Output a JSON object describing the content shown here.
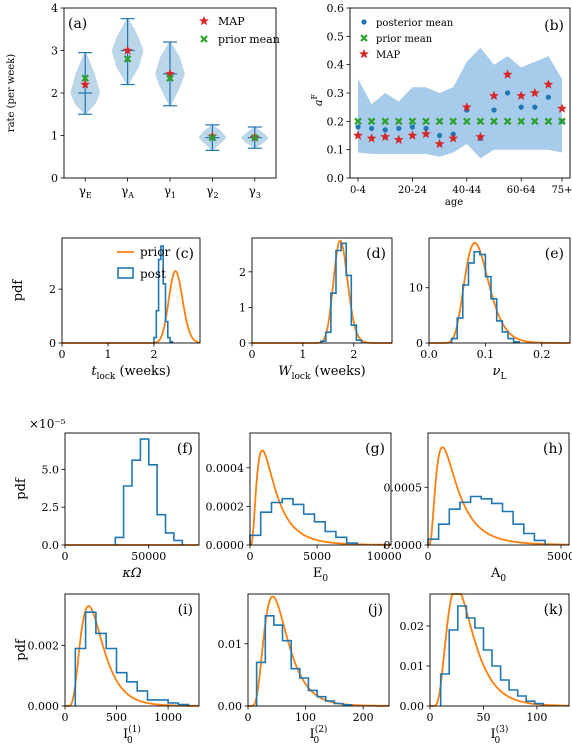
{
  "figure": {
    "width": 572,
    "height": 749
  },
  "chart_data": [
    {
      "id": "a",
      "type": "violin",
      "panel_label": "(a)",
      "ylabel": "rate (per week)",
      "xlabel": "",
      "categories": [
        "γE",
        "γA",
        "γ1",
        "γ2",
        "γ3"
      ],
      "category_labels": [
        {
          "main": "γ",
          "sub": "E"
        },
        {
          "main": "γ",
          "sub": "A"
        },
        {
          "main": "γ",
          "sub": "1"
        },
        {
          "main": "γ",
          "sub": "2"
        },
        {
          "main": "γ",
          "sub": "3"
        }
      ],
      "ylim": [
        0,
        4
      ],
      "yticks": [
        "0",
        "1",
        "2",
        "3",
        "4"
      ],
      "violins": [
        {
          "min": 1.5,
          "q_low": 1.75,
          "median": 2.0,
          "q_high": 2.45,
          "max": 2.95,
          "width": 0.32
        },
        {
          "min": 2.2,
          "q_low": 2.6,
          "median": 3.0,
          "q_high": 3.35,
          "max": 3.75,
          "width": 0.34
        },
        {
          "min": 1.7,
          "q_low": 2.15,
          "median": 2.45,
          "q_high": 2.85,
          "max": 3.2,
          "width": 0.32
        },
        {
          "min": 0.65,
          "q_low": 0.85,
          "median": 0.95,
          "q_high": 1.1,
          "max": 1.25,
          "width": 0.3
        },
        {
          "min": 0.7,
          "q_low": 0.85,
          "median": 0.95,
          "q_high": 1.05,
          "max": 1.2,
          "width": 0.3
        }
      ],
      "series": [
        {
          "name": "MAP",
          "marker": "star",
          "color": "#d62728",
          "values": [
            2.2,
            3.0,
            2.45,
            0.98,
            0.95
          ]
        },
        {
          "name": "prior mean",
          "marker": "x",
          "color": "#2ca02c",
          "values": [
            2.35,
            2.8,
            2.35,
            0.95,
            0.95
          ]
        }
      ],
      "legend_position": "top-right"
    },
    {
      "id": "b",
      "type": "scatter",
      "panel_label": "(b)",
      "ylabel": "αF",
      "ylabel_main": "a",
      "ylabel_sup": "F",
      "xlabel": "age",
      "x_categories": [
        "0-4",
        "5-9",
        "10-14",
        "15-19",
        "20-24",
        "25-29",
        "30-34",
        "35-39",
        "40-44",
        "45-49",
        "50-54",
        "55-59",
        "60-64",
        "65-69",
        "70-74",
        "75+"
      ],
      "xtick_labels": [
        "0-4",
        "20-24",
        "40-44",
        "60-64",
        "75+"
      ],
      "ylim": [
        0,
        0.6
      ],
      "yticks": [
        "0.0",
        "0.1",
        "0.2",
        "0.3",
        "0.4",
        "0.5",
        "0.6"
      ],
      "band_low": [
        0.09,
        0.085,
        0.085,
        0.085,
        0.085,
        0.085,
        0.075,
        0.09,
        0.12,
        0.07,
        0.1,
        0.1,
        0.1,
        0.1,
        0.1,
        0.09
      ],
      "band_high": [
        0.35,
        0.26,
        0.3,
        0.27,
        0.32,
        0.32,
        0.3,
        0.32,
        0.41,
        0.46,
        0.4,
        0.43,
        0.39,
        0.41,
        0.43,
        0.35
      ],
      "series": [
        {
          "name": "posterior mean",
          "marker": "dot",
          "color": "#1f77b4",
          "values": [
            0.18,
            0.175,
            0.17,
            0.175,
            0.18,
            0.175,
            0.15,
            0.155,
            0.24,
            0.14,
            0.24,
            0.3,
            0.25,
            0.25,
            0.285,
            0.2
          ]
        },
        {
          "name": "prior mean",
          "marker": "x",
          "color": "#2ca02c",
          "values": [
            0.2,
            0.2,
            0.2,
            0.2,
            0.2,
            0.2,
            0.2,
            0.2,
            0.2,
            0.2,
            0.2,
            0.2,
            0.2,
            0.2,
            0.2,
            0.2
          ]
        },
        {
          "name": "MAP",
          "marker": "star",
          "color": "#d62728",
          "values": [
            0.15,
            0.14,
            0.145,
            0.135,
            0.15,
            0.155,
            0.12,
            0.14,
            0.25,
            0.145,
            0.29,
            0.365,
            0.29,
            0.3,
            0.33,
            0.245
          ]
        }
      ],
      "legend_position": "top-left"
    },
    {
      "id": "c",
      "type": "histogram_with_density",
      "panel_label": "(c)",
      "ylabel": "pdf",
      "xlabel": "t_lock (weeks)",
      "xlabel_main": "t",
      "xlabel_sub": "lock",
      "xlabel_unit": "(weeks)",
      "xlim": [
        0,
        3
      ],
      "ylim": [
        0,
        3.9
      ],
      "xticks": [
        0,
        1,
        2
      ],
      "yticks": [
        0,
        2
      ],
      "legend": [
        "prior",
        "post"
      ],
      "hist": {
        "edges": [
          2.0,
          2.05,
          2.1,
          2.15,
          2.2,
          2.25,
          2.3,
          2.35,
          2.4
        ],
        "values": [
          0.2,
          1.2,
          3.1,
          3.6,
          2.2,
          0.8,
          0.2,
          0.05
        ]
      },
      "prior": {
        "type": "lognormal",
        "mean": 2.48,
        "sd": 0.15
      }
    },
    {
      "id": "d",
      "type": "histogram_with_density",
      "panel_label": "(d)",
      "ylabel": "",
      "xlabel": "W_lock (weeks)",
      "xlabel_main": "W",
      "xlabel_sub": "lock",
      "xlabel_unit": "(weeks)",
      "xlim": [
        0,
        2.75
      ],
      "ylim": [
        0,
        2.95
      ],
      "xticks": [
        0,
        1,
        2
      ],
      "yticks": [
        0,
        1,
        2
      ],
      "hist": {
        "edges": [
          1.35,
          1.45,
          1.55,
          1.65,
          1.75,
          1.85,
          1.95,
          2.05,
          2.15
        ],
        "values": [
          0.05,
          0.3,
          1.4,
          2.6,
          2.8,
          1.9,
          0.5,
          0.08
        ]
      },
      "prior": {
        "type": "lognormal",
        "mean": 1.75,
        "sd": 0.14
      }
    },
    {
      "id": "e",
      "type": "histogram_with_density",
      "panel_label": "(e)",
      "ylabel": "",
      "xlabel": "νL",
      "xlabel_main": "ν",
      "xlabel_sub": "L",
      "xlim": [
        0,
        0.25
      ],
      "ylim": [
        0,
        19
      ],
      "xticks": [
        0.0,
        0.1,
        0.2
      ],
      "xtick_labels": [
        "0.0",
        "0.1",
        "0.2"
      ],
      "yticks": [
        0,
        10
      ],
      "hist": {
        "edges": [
          0.04,
          0.05,
          0.06,
          0.07,
          0.08,
          0.09,
          0.1,
          0.11,
          0.12,
          0.13,
          0.14,
          0.15,
          0.16
        ],
        "values": [
          0.8,
          4.5,
          10.5,
          14.5,
          16.5,
          16.0,
          12.0,
          8.0,
          4.0,
          2.0,
          0.8,
          0.2
        ]
      },
      "prior": {
        "type": "lognormal",
        "mean": 0.09,
        "sd": 0.024
      }
    },
    {
      "id": "f",
      "type": "histogram_with_density",
      "panel_label": "(f)",
      "ylabel": "pdf",
      "xlabel": "κΩ",
      "xlabel_main": "κΩ",
      "y_multiplier": "×10⁻⁵",
      "xlim": [
        0,
        80000
      ],
      "ylim": [
        0,
        7.4
      ],
      "xticks": [
        0,
        50000
      ],
      "xtick_labels": [
        "0",
        "50000"
      ],
      "yticks": [
        0,
        2.5,
        5.0
      ],
      "ytick_labels": [
        "0.0",
        "2.5",
        "5.0"
      ],
      "hist": {
        "edges": [
          30000,
          35000,
          40000,
          45000,
          50000,
          55000,
          60000,
          65000,
          70000
        ],
        "values": [
          0.5,
          3.9,
          5.6,
          7.0,
          5.3,
          2.0,
          0.8,
          0.3
        ]
      },
      "prior": {
        "type": "gamma",
        "mean": 28000,
        "sd": 12000
      }
    },
    {
      "id": "g",
      "type": "histogram_with_density",
      "panel_label": "(g)",
      "ylabel": "",
      "xlabel": "E0",
      "xlabel_main": "E",
      "xlabel_sub": "0",
      "xlim": [
        0,
        10500
      ],
      "ylim": [
        0,
        0.00058
      ],
      "xticks": [
        0,
        5000,
        10000
      ],
      "xtick_labels": [
        "0",
        "5000",
        "10000"
      ],
      "yticks": [
        0,
        0.0002,
        0.0004
      ],
      "ytick_labels": [
        "0.0000",
        "0.0002",
        "0.0004"
      ],
      "hist": {
        "edges": [
          0,
          800,
          1600,
          2400,
          3200,
          4000,
          4800,
          5600,
          6400,
          7200,
          8000
        ],
        "values": [
          5e-05,
          0.00017,
          0.00022,
          0.00024,
          0.00021,
          0.00016,
          0.00012,
          7e-05,
          4e-05,
          1e-05
        ]
      },
      "prior": {
        "type": "lognormal",
        "mean": 1900,
        "sd": 1500
      }
    },
    {
      "id": "h",
      "type": "histogram_with_density",
      "panel_label": "(h)",
      "ylabel": "",
      "xlabel": "A0",
      "xlabel_main": "A",
      "xlabel_sub": "0",
      "xlim": [
        0,
        5300
      ],
      "ylim": [
        0,
        0.00097
      ],
      "xticks": [
        0,
        5000
      ],
      "xtick_labels": [
        "0",
        "5000"
      ],
      "yticks": [
        0,
        0.0005
      ],
      "ytick_labels": [
        "0.0000",
        "0.0005"
      ],
      "hist": {
        "edges": [
          0,
          400,
          800,
          1200,
          1600,
          2000,
          2400,
          2800,
          3200,
          3600,
          4000,
          4400
        ],
        "values": [
          5e-05,
          0.00018,
          0.00031,
          0.00037,
          0.00042,
          0.0004,
          0.00036,
          0.00029,
          0.00018,
          0.0001,
          4e-05
        ]
      },
      "prior": {
        "type": "lognormal",
        "mean": 1100,
        "sd": 850
      }
    },
    {
      "id": "i",
      "type": "histogram_with_density",
      "panel_label": "(i)",
      "ylabel": "pdf",
      "xlabel": "I0(1)",
      "xlabel_main": "I",
      "xlabel_sub": "0",
      "xlabel_sup": "(1)",
      "xlim": [
        0,
        1300
      ],
      "ylim": [
        0,
        0.0037
      ],
      "xticks": [
        0,
        500,
        1000
      ],
      "xtick_labels": [
        "0",
        "500",
        "1000"
      ],
      "yticks": [
        0,
        0.002
      ],
      "ytick_labels": [
        "0.000",
        "0.002"
      ],
      "hist": {
        "edges": [
          100,
          200,
          300,
          400,
          500,
          600,
          700,
          800,
          900,
          1000,
          1100,
          1200
        ],
        "values": [
          0.0019,
          0.0031,
          0.0024,
          0.0019,
          0.0011,
          0.0008,
          0.0005,
          0.0002,
          0.0002,
          0.0001,
          5e-05
        ]
      },
      "prior": {
        "type": "lognormal",
        "mean": 320,
        "sd": 160
      }
    },
    {
      "id": "j",
      "type": "histogram_with_density",
      "panel_label": "(j)",
      "ylabel": "",
      "xlabel": "I0(2)",
      "xlabel_main": "I",
      "xlabel_sub": "0",
      "xlabel_sup": "(2)",
      "xlim": [
        0,
        245
      ],
      "ylim": [
        0,
        0.018
      ],
      "xticks": [
        0,
        100,
        200
      ],
      "xtick_labels": [
        "0",
        "100",
        "200"
      ],
      "yticks": [
        0,
        0.01
      ],
      "ytick_labels": [
        "0.00",
        "0.01"
      ],
      "hist": {
        "edges": [
          15,
          30,
          45,
          60,
          75,
          90,
          105,
          120,
          135,
          150,
          165,
          180
        ],
        "values": [
          0.007,
          0.0145,
          0.013,
          0.0105,
          0.006,
          0.0045,
          0.0025,
          0.0015,
          0.0008,
          0.0004,
          0.0002
        ]
      },
      "prior": {
        "type": "lognormal",
        "mean": 60,
        "sd": 30
      }
    },
    {
      "id": "k",
      "type": "histogram_with_density",
      "panel_label": "(k)",
      "ylabel": "",
      "xlabel": "I0(3)",
      "xlabel_main": "I",
      "xlabel_sub": "0",
      "xlabel_sup": "(3)",
      "xlim": [
        0,
        130
      ],
      "ylim": [
        0,
        0.028
      ],
      "xticks": [
        0,
        50,
        100
      ],
      "xtick_labels": [
        "0",
        "50",
        "100"
      ],
      "yticks": [
        0,
        0.01,
        0.02
      ],
      "ytick_labels": [
        "0.00",
        "0.01",
        "0.02"
      ],
      "hist": {
        "edges": [
          10,
          18,
          26,
          34,
          42,
          50,
          58,
          66,
          74,
          82,
          90,
          98,
          106
        ],
        "values": [
          0.008,
          0.019,
          0.025,
          0.022,
          0.0195,
          0.014,
          0.01,
          0.0065,
          0.004,
          0.0025,
          0.0012,
          0.0006
        ]
      },
      "prior": {
        "type": "lognormal",
        "mean": 35,
        "sd": 18
      }
    }
  ]
}
